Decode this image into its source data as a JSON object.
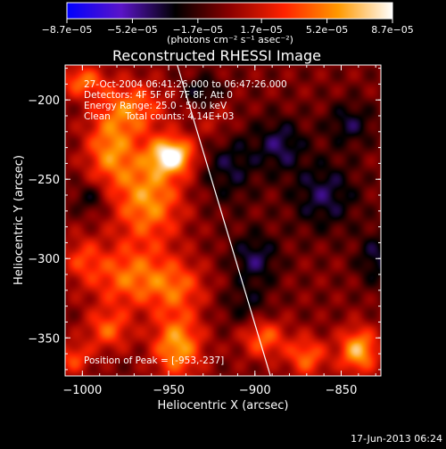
{
  "chart_data": {
    "type": "heatmap",
    "title": "Reconstructed RHESSI Image",
    "xlabel": "Heliocentric X (arcsec)",
    "ylabel": "Heliocentric Y (arcsec)",
    "xlim": [
      -1010,
      -827
    ],
    "ylim": [
      -374,
      -178
    ],
    "x_ticks": [
      -1000,
      -950,
      -900,
      -850
    ],
    "x_tick_labels": [
      "−1000",
      "−950",
      "−900",
      "−850"
    ],
    "y_ticks": [
      -200,
      -250,
      -300,
      -350
    ],
    "y_tick_labels": [
      "−200",
      "−250",
      "−300",
      "−350"
    ],
    "colorbar": {
      "range": [
        -8.7e-05,
        8.7e-05
      ],
      "ticks": [
        -8.7e-05,
        -5.2e-05,
        -1.7e-05,
        1.7e-05,
        5.2e-05,
        8.7e-05
      ],
      "tick_labels": [
        "−8.7e−05",
        "−5.2e−05",
        "−1.7e−05",
        "1.7e−05",
        "5.2e−05",
        "8.7e−05"
      ],
      "units": "(photons cm⁻² s⁻¹ asec⁻²)",
      "colors": [
        "#0000ff",
        "#5a14c8",
        "#000000",
        "#8a0000",
        "#ff2200",
        "#ff9900",
        "#ffffff"
      ]
    },
    "annotations": {
      "time_range": "27-Oct-2004 06:41:26.000 to 06:47:26.000",
      "detectors": "Detectors: 4F 5F 6F 7F 8F, Att 0",
      "energy_range": "Energy Range: 25.0 - 50.0 keV",
      "clean_counts": "Clean     Total counts: 4.14E+03",
      "peak_position": "Position of Peak = [-953,-237]"
    },
    "limb_line": [
      [
        -945,
        -178
      ],
      [
        -891,
        -374
      ]
    ],
    "sources": [
      {
        "x": -948,
        "y": -235,
        "sx": 9,
        "sy": 8,
        "a": 1.0
      },
      {
        "x": -972,
        "y": -205,
        "sx": 14,
        "sy": 12,
        "a": 0.55
      },
      {
        "x": -962,
        "y": -262,
        "sx": 14,
        "sy": 20,
        "a": 0.7
      },
      {
        "x": -984,
        "y": -232,
        "sx": 10,
        "sy": 15,
        "a": 0.6
      },
      {
        "x": -1000,
        "y": -188,
        "sx": 9,
        "sy": 7,
        "a": 0.55
      },
      {
        "x": -973,
        "y": -312,
        "sx": 16,
        "sy": 14,
        "a": 0.55
      },
      {
        "x": -945,
        "y": -318,
        "sx": 12,
        "sy": 12,
        "a": 0.45
      },
      {
        "x": -945,
        "y": -355,
        "sx": 10,
        "sy": 14,
        "a": 0.75
      },
      {
        "x": -985,
        "y": -345,
        "sx": 9,
        "sy": 9,
        "a": 0.5
      },
      {
        "x": -1000,
        "y": -300,
        "sx": 8,
        "sy": 10,
        "a": 0.35
      },
      {
        "x": -1005,
        "y": -363,
        "sx": 7,
        "sy": 7,
        "a": 0.45
      },
      {
        "x": -895,
        "y": -350,
        "sx": 9,
        "sy": 9,
        "a": 0.55
      },
      {
        "x": -870,
        "y": -362,
        "sx": 8,
        "sy": 9,
        "a": 0.55
      },
      {
        "x": -840,
        "y": -358,
        "sx": 8,
        "sy": 10,
        "a": 0.8
      },
      {
        "x": -922,
        "y": -215,
        "sx": 9,
        "sy": 11,
        "a": 0.25
      },
      {
        "x": -930,
        "y": -195,
        "sx": 8,
        "sy": 7,
        "a": -0.35
      },
      {
        "x": -915,
        "y": -240,
        "sx": 12,
        "sy": 18,
        "a": -0.35
      },
      {
        "x": -900,
        "y": -300,
        "sx": 10,
        "sy": 12,
        "a": -0.4
      },
      {
        "x": -885,
        "y": -228,
        "sx": 10,
        "sy": 12,
        "a": -0.4
      },
      {
        "x": -860,
        "y": -260,
        "sx": 14,
        "sy": 16,
        "a": -0.4
      },
      {
        "x": -845,
        "y": -215,
        "sx": 10,
        "sy": 10,
        "a": -0.35
      },
      {
        "x": -905,
        "y": -330,
        "sx": 10,
        "sy": 10,
        "a": -0.25
      },
      {
        "x": -830,
        "y": -300,
        "sx": 8,
        "sy": 12,
        "a": -0.35
      },
      {
        "x": -995,
        "y": -262,
        "sx": 7,
        "sy": 7,
        "a": -0.3
      }
    ]
  },
  "footer": {
    "date": "17-Jun-2013 06:24"
  }
}
